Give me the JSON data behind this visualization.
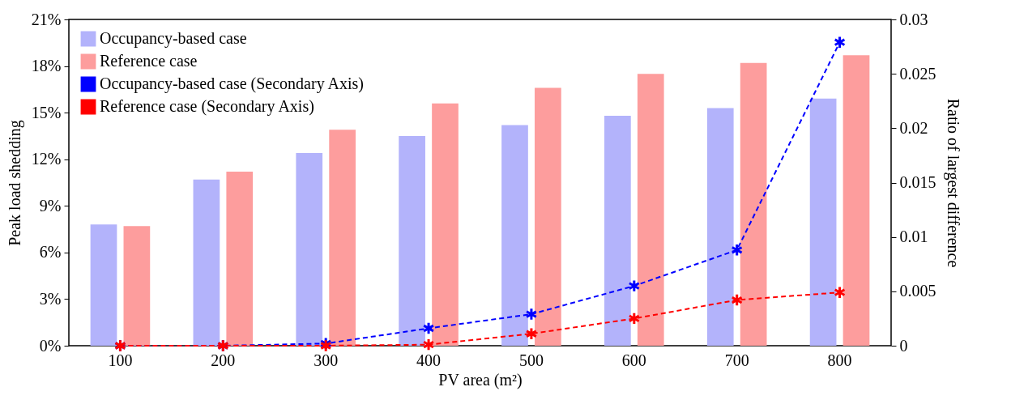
{
  "chart_data": {
    "type": "bar",
    "xlabel": "PV area (m²)",
    "ylabel": "Peak load shedding",
    "y2label": "Ratio of largest difference",
    "categories": [
      "100",
      "200",
      "300",
      "400",
      "500",
      "600",
      "700",
      "800"
    ],
    "series": [
      {
        "name": "Occupancy-based case",
        "color": "#b3b3fb",
        "values": [
          7.8,
          10.7,
          12.4,
          13.5,
          14.2,
          14.8,
          15.3,
          15.9
        ]
      },
      {
        "name": "Reference case",
        "color": "#fd9d9d",
        "values": [
          7.7,
          11.2,
          13.9,
          15.6,
          16.6,
          17.5,
          18.2,
          18.7
        ]
      },
      {
        "name": "Occupancy-based case (Secondary Axis)",
        "type": "line",
        "axis": "y2",
        "color": "#0000ff",
        "values": [
          0,
          0,
          0.0002,
          0.0016,
          0.0029,
          0.0055,
          0.0088,
          0.0279
        ]
      },
      {
        "name": "Reference case (Secondary Axis)",
        "type": "line",
        "axis": "y2",
        "color": "#ff0000",
        "values": [
          0,
          0,
          0,
          0.0001,
          0.0011,
          0.0025,
          0.0042,
          0.0049
        ]
      }
    ],
    "ylim": [
      0,
      21
    ],
    "yticks": [
      {
        "value": 0,
        "label": "0%"
      },
      {
        "value": 3,
        "label": "3%"
      },
      {
        "value": 6,
        "label": "6%"
      },
      {
        "value": 9,
        "label": "9%"
      },
      {
        "value": 12,
        "label": "12%"
      },
      {
        "value": 15,
        "label": "15%"
      },
      {
        "value": 18,
        "label": "18%"
      },
      {
        "value": 21,
        "label": "21%"
      }
    ],
    "y2lim": [
      0,
      0.03
    ],
    "y2ticks": [
      0,
      0.005,
      0.01,
      0.015,
      0.02,
      0.025,
      0.03
    ],
    "legend": "top left",
    "marker": "cross",
    "line_style": "dashed",
    "grid": false
  }
}
